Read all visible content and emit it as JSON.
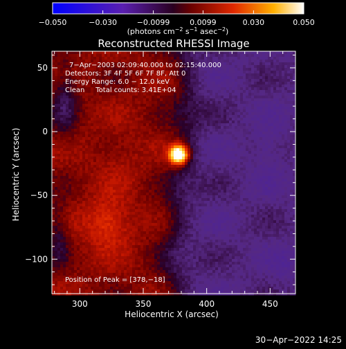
{
  "chart_data": {
    "type": "heatmap",
    "title": "Reconstructed RHESSI Image",
    "xlabel": "Heliocentric X (arcsec)",
    "ylabel": "Heliocentric Y (arcsec)",
    "xlim": [
      278,
      470
    ],
    "ylim": [
      -127,
      63
    ],
    "xticks": [
      300,
      350,
      400,
      450
    ],
    "yticks": [
      -100,
      -50,
      0,
      50
    ],
    "colorbar": {
      "min": -0.05,
      "max": 0.05,
      "ticks": [
        "−0.050",
        "−0.030",
        "−0.0099",
        "0.0099",
        "0.030",
        "0.050"
      ],
      "tick_values": [
        -0.05,
        -0.03,
        -0.0099,
        0.0099,
        0.03,
        0.05
      ],
      "label_prefix": "(photons cm",
      "label_sup1": "−2",
      "label_mid": " s",
      "label_sup2": "−1",
      "label_mid2": " asec",
      "label_sup3": "−2",
      "label_suffix": ")"
    },
    "annotations": [
      "7−Apr−2003 02:09:40.000 to 02:15:40.000",
      "Detectors: 3F 4F 5F 6F 7F 8F, Att 0",
      "Energy Range: 6.0 − 12.0 keV",
      "Clean     Total counts: 3.41E+04"
    ],
    "peak_label": "Position of Peak = [378,−18]",
    "peak": [
      378,
      -18
    ],
    "sources": [
      {
        "x": 378,
        "y": -18,
        "value": 0.05
      },
      {
        "x": 322,
        "y": -72,
        "value": 0.031
      },
      {
        "x": 330,
        "y": -20,
        "value": 0.022
      },
      {
        "x": 320,
        "y": 25,
        "value": 0.017
      }
    ]
  },
  "footer": {
    "timestamp": "30−Apr−2022 14:25"
  }
}
